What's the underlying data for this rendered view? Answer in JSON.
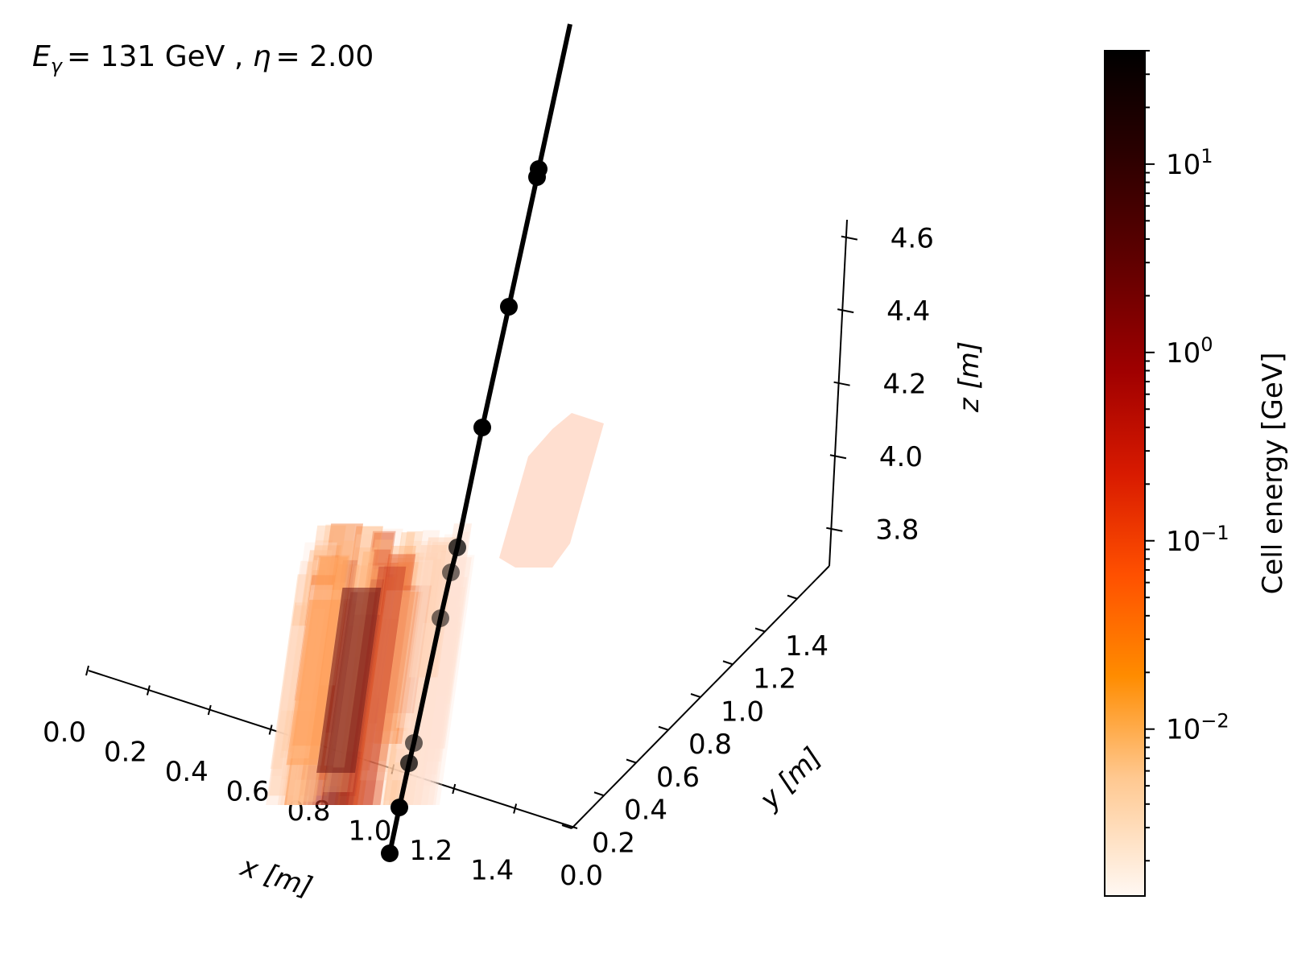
{
  "chart_data": {
    "type": "scatter",
    "annotation": "E_γ = 131 GeV , η = 2.00",
    "annotation_parts": {
      "energy_prefix": "= 131 GeV , ",
      "eta_part": "= 2.00"
    },
    "x_axis": {
      "label": "x [m]",
      "ticks": [
        "0.0",
        "0.2",
        "0.4",
        "0.6",
        "0.8",
        "1.0",
        "1.2",
        "1.4"
      ]
    },
    "y_axis": {
      "label": "y [m]",
      "ticks": [
        "0.0",
        "0.2",
        "0.4",
        "0.6",
        "0.8",
        "1.0",
        "1.2",
        "1.4"
      ]
    },
    "z_axis": {
      "label": "z [m]",
      "ticks": [
        "3.8",
        "4.0",
        "4.2",
        "4.4",
        "4.6"
      ]
    },
    "colorbar": {
      "label": "Cell energy [GeV]",
      "scale": "log",
      "colormap": "gist_heat_r",
      "ticks": [
        {
          "value": 0.01,
          "base": "10",
          "exp": "−2"
        },
        {
          "value": 0.1,
          "base": "10",
          "exp": "−1"
        },
        {
          "value": 1,
          "base": "10",
          "exp": "0"
        },
        {
          "value": 10,
          "base": "10",
          "exp": "1"
        }
      ],
      "range": [
        0.0013,
        40
      ],
      "colors": {
        "low": "#fff8f3",
        "mid_low": "#ffb060",
        "mid": "#ff5a00",
        "mid_high": "#c00000",
        "high": "#500000",
        "top": "#000000"
      }
    },
    "track": {
      "color": "#000000",
      "points_xyz": [
        [
          1.06,
          1.0,
          3.55
        ],
        [
          1.07,
          1.0,
          3.65
        ],
        [
          1.08,
          1.0,
          3.73
        ],
        [
          1.1,
          1.0,
          3.76
        ],
        [
          1.13,
          1.0,
          3.92
        ],
        [
          1.16,
          1.0,
          4.02
        ],
        [
          1.18,
          1.0,
          4.07
        ],
        [
          1.22,
          1.0,
          4.24
        ],
        [
          1.26,
          1.0,
          4.4
        ],
        [
          1.3,
          1.0,
          4.57
        ],
        [
          1.31,
          1.0,
          4.58
        ],
        [
          1.35,
          1.0,
          4.78
        ]
      ]
    }
  }
}
